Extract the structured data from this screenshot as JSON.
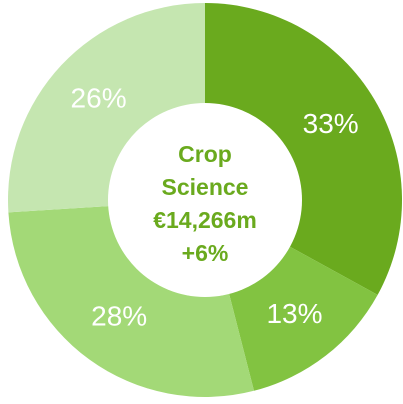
{
  "chart_data": {
    "type": "donut",
    "title_lines": [
      "Crop",
      "Science"
    ],
    "total": "€14,266m",
    "change": "+6%",
    "categories": [
      null,
      null,
      null,
      null
    ],
    "values": [
      33,
      13,
      28,
      26
    ],
    "value_labels": [
      "33%",
      "13%",
      "28%",
      "26%"
    ],
    "colors": [
      "#6aaa1e",
      "#82c341",
      "#a3d977",
      "#c5e6b0"
    ],
    "center_color": "#6aaa1e"
  }
}
